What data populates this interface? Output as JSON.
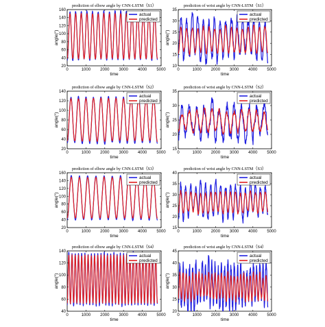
{
  "colors": {
    "actual": "#1f1fe0",
    "predicted": "#e01f1f"
  },
  "chart_data": [
    {
      "type": "line",
      "title": "prediction of elbow angle by CNN-LSTM（S1）",
      "xlabel": "time",
      "ylabel": "angle(°)",
      "xlim": [
        0,
        5000
      ],
      "ylim": [
        20,
        160
      ],
      "xticks": [
        "0",
        "1000",
        "2000",
        "3000",
        "4000",
        "5000"
      ],
      "yticks": [
        "20",
        "40",
        "60",
        "80",
        "100",
        "120",
        "140",
        "160"
      ],
      "legend_placement": "top-right",
      "series": [
        {
          "name": "actual",
          "pattern": {
            "length": 4800,
            "cycles": 16,
            "min": 35,
            "max": 155,
            "noise": 3
          }
        },
        {
          "name": "predicted",
          "pattern": {
            "length": 4800,
            "cycles": 16,
            "min": 38,
            "max": 150,
            "noise": 1
          }
        }
      ]
    },
    {
      "type": "line",
      "title": "prediction of wrist angle by CNN-LSTM（S1）",
      "xlabel": "time",
      "ylabel": "angle(°)",
      "xlim": [
        0,
        5000
      ],
      "ylim": [
        10,
        35
      ],
      "xticks": [
        "0",
        "1000",
        "2000",
        "3000",
        "4000",
        "5000"
      ],
      "yticks": [
        "10",
        "15",
        "20",
        "25",
        "30",
        "35"
      ],
      "legend_placement": "top-right",
      "series": [
        {
          "name": "actual",
          "pattern": {
            "length": 4800,
            "cycles": 16,
            "min": 14,
            "max": 31,
            "noise": 3
          }
        },
        {
          "name": "predicted",
          "pattern": {
            "length": 4800,
            "cycles": 16,
            "min": 16,
            "max": 27,
            "noise": 1
          }
        }
      ]
    },
    {
      "type": "line",
      "title": "prediction of elbow angle by CNN-LSTM（S2）",
      "xlabel": "time",
      "ylabel": "angle(°)",
      "xlim": [
        0,
        5000
      ],
      "ylim": [
        20,
        140
      ],
      "xticks": [
        "0",
        "1000",
        "2000",
        "3000",
        "4000",
        "5000"
      ],
      "yticks": [
        "20",
        "40",
        "60",
        "80",
        "100",
        "120",
        "140"
      ],
      "legend_placement": "top-right",
      "series": [
        {
          "name": "actual",
          "pattern": {
            "length": 4800,
            "cycles": 12,
            "min": 32,
            "max": 128,
            "noise": 2
          }
        },
        {
          "name": "predicted",
          "pattern": {
            "length": 4800,
            "cycles": 12,
            "min": 36,
            "max": 125,
            "noise": 1
          }
        }
      ]
    },
    {
      "type": "line",
      "title": "prediction of wrist angle by CNN-LSTM（S2）",
      "xlabel": "time",
      "ylabel": "angle(°)",
      "xlim": [
        0,
        5000
      ],
      "ylim": [
        15,
        35
      ],
      "xticks": [
        "0",
        "1000",
        "2000",
        "3000",
        "4000",
        "5000"
      ],
      "yticks": [
        "15",
        "20",
        "25",
        "30",
        "35"
      ],
      "legend_placement": "top-right",
      "series": [
        {
          "name": "actual",
          "pattern": {
            "length": 4800,
            "cycles": 12,
            "min": 19,
            "max": 30,
            "noise": 2.5
          }
        },
        {
          "name": "predicted",
          "pattern": {
            "length": 4800,
            "cycles": 12,
            "min": 21,
            "max": 28,
            "noise": 1
          }
        }
      ]
    },
    {
      "type": "line",
      "title": "prediction of elbow angle by CNN-LSTM（S3）",
      "xlabel": "time",
      "ylabel": "angle(°)",
      "xlim": [
        0,
        5000
      ],
      "ylim": [
        20,
        160
      ],
      "xticks": [
        "0",
        "1000",
        "2000",
        "3000",
        "4000",
        "5000"
      ],
      "yticks": [
        "20",
        "40",
        "60",
        "80",
        "100",
        "120",
        "140",
        "160"
      ],
      "legend_placement": "top-right",
      "series": [
        {
          "name": "actual",
          "pattern": {
            "length": 4800,
            "cycles": 11,
            "min": 40,
            "max": 152,
            "noise": 2
          }
        },
        {
          "name": "predicted",
          "pattern": {
            "length": 4800,
            "cycles": 11,
            "min": 44,
            "max": 148,
            "noise": 1
          }
        }
      ]
    },
    {
      "type": "line",
      "title": "prediction of wrist angle by CNN-LSTM（S3）",
      "xlabel": "time",
      "ylabel": "angle(°)",
      "xlim": [
        0,
        5000
      ],
      "ylim": [
        15,
        40
      ],
      "xticks": [
        "0",
        "1000",
        "2000",
        "3000",
        "4000",
        "5000"
      ],
      "yticks": [
        "15",
        "20",
        "25",
        "30",
        "35",
        "40"
      ],
      "legend_placement": "top-right",
      "series": [
        {
          "name": "actual",
          "pattern": {
            "length": 4800,
            "cycles": 18,
            "min": 20,
            "max": 34,
            "noise": 2.5
          }
        },
        {
          "name": "predicted",
          "pattern": {
            "length": 4800,
            "cycles": 18,
            "min": 22,
            "max": 31,
            "noise": 1
          }
        }
      ]
    },
    {
      "type": "line",
      "title": "prediction of elbow angle by CNN-LSTM（S4）",
      "xlabel": "time",
      "ylabel": "angle(°)",
      "xlim": [
        0,
        5000
      ],
      "ylim": [
        40,
        140
      ],
      "xticks": [
        "0",
        "1000",
        "2000",
        "3000",
        "4000",
        "5000"
      ],
      "yticks": [
        "40",
        "60",
        "80",
        "100",
        "120",
        "140"
      ],
      "legend_placement": "top-right",
      "series": [
        {
          "name": "actual",
          "pattern": {
            "length": 4800,
            "cycles": 28,
            "min": 50,
            "max": 136,
            "noise": 2
          }
        },
        {
          "name": "predicted",
          "pattern": {
            "length": 4800,
            "cycles": 28,
            "min": 53,
            "max": 133,
            "noise": 1
          }
        }
      ]
    },
    {
      "type": "line",
      "title": "prediction of wrist angle by CNN-LSTM（S4）",
      "xlabel": "time",
      "ylabel": "angle(°)",
      "xlim": [
        0,
        5000
      ],
      "ylim": [
        20,
        45
      ],
      "xticks": [
        "0",
        "1000",
        "2000",
        "3000",
        "4000",
        "5000"
      ],
      "yticks": [
        "20",
        "25",
        "30",
        "35",
        "40",
        "45"
      ],
      "legend_placement": "top-right",
      "series": [
        {
          "name": "actual",
          "pattern": {
            "length": 4800,
            "cycles": 28,
            "min": 23,
            "max": 39,
            "noise": 4
          }
        },
        {
          "name": "predicted",
          "pattern": {
            "length": 4800,
            "cycles": 28,
            "min": 25,
            "max": 35,
            "noise": 1.5
          }
        }
      ]
    }
  ]
}
